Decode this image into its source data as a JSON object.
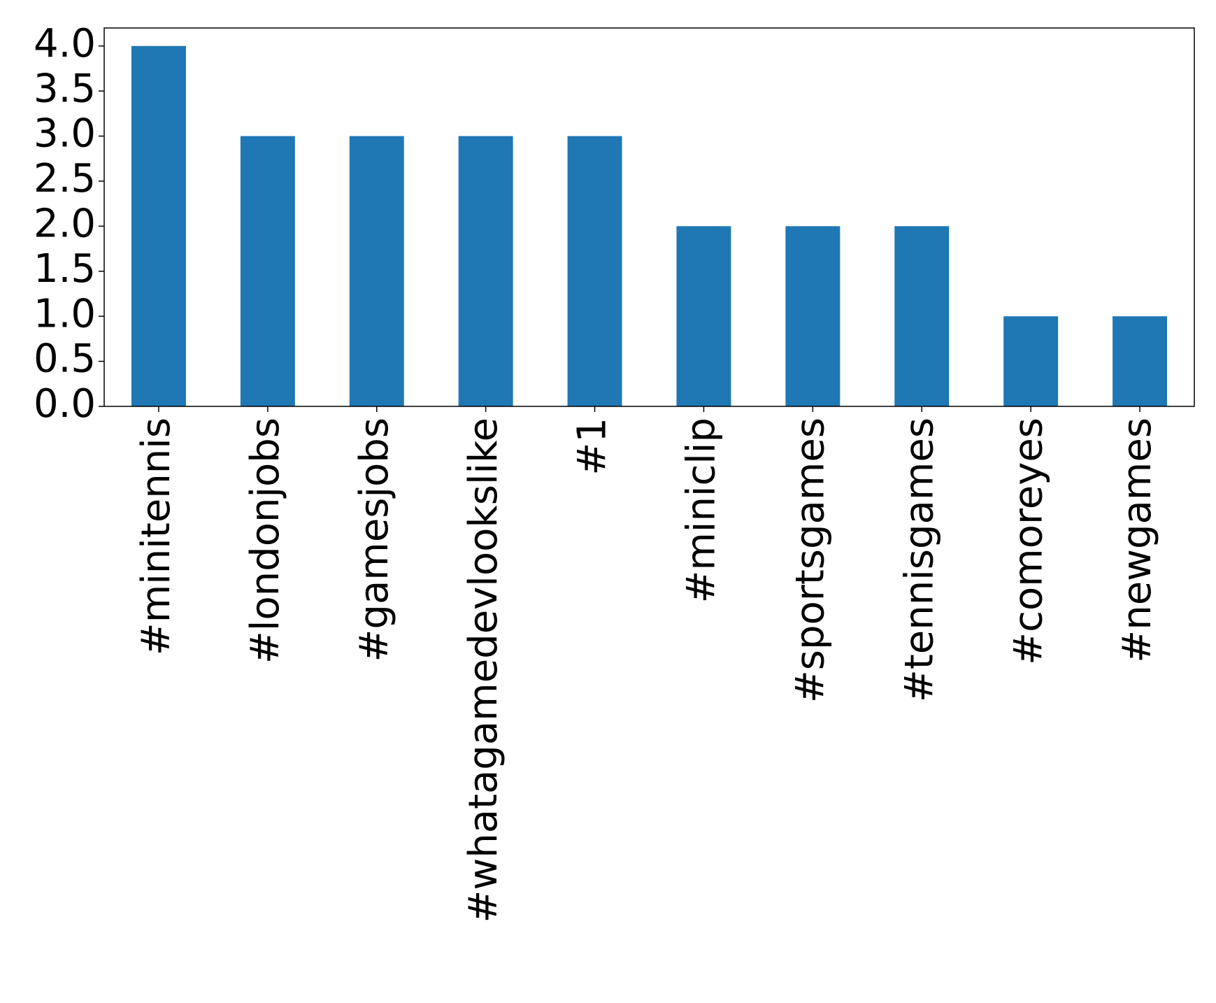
{
  "chart_data": {
    "type": "bar",
    "categories": [
      "#minitennis",
      "#londonjobs",
      "#gamesjobs",
      "#whatagamedevlookslike",
      "#1",
      "#miniclip",
      "#sportsgames",
      "#tennisgames",
      "#comoreyes",
      "#newgames"
    ],
    "values": [
      4,
      3,
      3,
      3,
      3,
      2,
      2,
      2,
      1,
      1
    ],
    "color": "#1f77b4",
    "ylim": [
      0,
      4.2
    ],
    "yticks": [
      {
        "value": 0,
        "label": "0.0"
      },
      {
        "value": 0.5,
        "label": "0.5"
      },
      {
        "value": 1,
        "label": "1.0"
      },
      {
        "value": 1.5,
        "label": "1.5"
      },
      {
        "value": 2,
        "label": "2.0"
      },
      {
        "value": 2.5,
        "label": "2.5"
      },
      {
        "value": 3,
        "label": "3.0"
      },
      {
        "value": 3.5,
        "label": "3.5"
      },
      {
        "value": 4,
        "label": "4.0"
      }
    ],
    "grid": false
  }
}
